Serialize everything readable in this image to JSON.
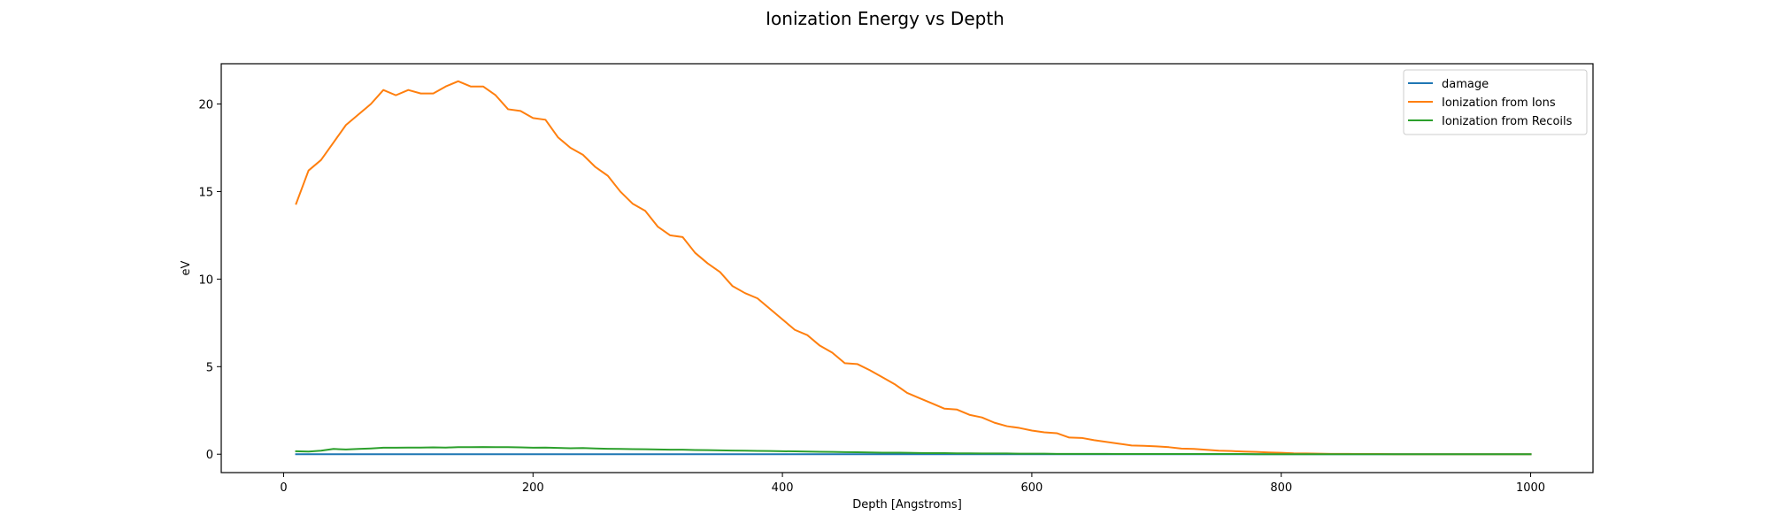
{
  "chart_data": {
    "type": "line",
    "title": "Ionization Energy vs Depth",
    "xlabel": "Depth [Angstroms]",
    "ylabel": "eV",
    "xlim": [
      -50,
      1050
    ],
    "ylim": [
      -1.05,
      22.3
    ],
    "xticks": [
      0,
      200,
      400,
      600,
      800,
      1000
    ],
    "yticks": [
      0,
      5,
      10,
      15,
      20
    ],
    "grid": false,
    "legend_position": "top-right",
    "x": [
      10,
      20,
      30,
      40,
      50,
      60,
      70,
      80,
      90,
      100,
      110,
      120,
      130,
      140,
      150,
      160,
      170,
      180,
      190,
      200,
      210,
      220,
      230,
      240,
      250,
      260,
      270,
      280,
      290,
      300,
      310,
      320,
      330,
      340,
      350,
      360,
      370,
      380,
      390,
      400,
      410,
      420,
      430,
      440,
      450,
      460,
      470,
      480,
      490,
      500,
      510,
      520,
      530,
      540,
      550,
      560,
      570,
      580,
      590,
      600,
      610,
      620,
      630,
      640,
      650,
      660,
      670,
      680,
      690,
      700,
      710,
      720,
      730,
      740,
      750,
      760,
      770,
      780,
      790,
      800,
      810,
      820,
      830,
      840,
      850,
      860,
      870,
      880,
      890,
      900,
      910,
      920,
      930,
      940,
      950,
      960,
      970,
      980,
      990,
      1000
    ],
    "series": [
      {
        "name": "damage",
        "color": "#1f77b4",
        "values": [
          0.0,
          0.0,
          0.0,
          0.0,
          0.0,
          0.0,
          0.0,
          0.0,
          0.0,
          0.0,
          0.0,
          0.0,
          0.0,
          0.0,
          0.0,
          0.0,
          0.0,
          0.0,
          0.0,
          0.0,
          0.0,
          0.0,
          0.0,
          0.0,
          0.0,
          0.0,
          0.0,
          0.0,
          0.0,
          0.0,
          0.0,
          0.0,
          0.0,
          0.0,
          0.0,
          0.0,
          0.0,
          0.0,
          0.0,
          0.0,
          0.0,
          0.0,
          0.0,
          0.0,
          0.0,
          0.0,
          0.0,
          0.0,
          0.0,
          0.0,
          0.0,
          0.0,
          0.0,
          0.0,
          0.0,
          0.0,
          0.0,
          0.0,
          0.0,
          0.0,
          0.0,
          0.0,
          0.0,
          0.0,
          0.0,
          0.0,
          0.0,
          0.0,
          0.0,
          0.0,
          0.0,
          0.0,
          0.0,
          0.0,
          0.0,
          0.0,
          0.0,
          0.0,
          0.0,
          0.0,
          0.0,
          0.0,
          0.0,
          0.0,
          0.0,
          0.0,
          0.0,
          0.0,
          0.0,
          0.0,
          0.0,
          0.0,
          0.0,
          0.0,
          0.0,
          0.0,
          0.0,
          0.0,
          0.0,
          0.0
        ]
      },
      {
        "name": "Ionization from Ions",
        "color": "#ff7f0e",
        "values": [
          14.3,
          16.2,
          16.8,
          17.8,
          18.8,
          19.4,
          20.0,
          20.8,
          20.5,
          20.8,
          20.6,
          20.6,
          21.0,
          21.3,
          21.0,
          21.0,
          20.5,
          19.7,
          19.6,
          19.2,
          19.1,
          18.1,
          17.5,
          17.1,
          16.4,
          15.9,
          15.0,
          14.3,
          13.9,
          13.0,
          12.5,
          12.4,
          11.5,
          10.9,
          10.4,
          9.6,
          9.2,
          8.9,
          8.3,
          7.7,
          7.1,
          6.8,
          6.2,
          5.8,
          5.2,
          5.15,
          4.8,
          4.4,
          4.0,
          3.5,
          3.2,
          2.9,
          2.6,
          2.55,
          2.25,
          2.1,
          1.8,
          1.6,
          1.5,
          1.35,
          1.25,
          1.2,
          0.95,
          0.93,
          0.8,
          0.7,
          0.6,
          0.5,
          0.48,
          0.45,
          0.4,
          0.32,
          0.3,
          0.25,
          0.2,
          0.18,
          0.15,
          0.13,
          0.1,
          0.08,
          0.05,
          0.04,
          0.03,
          0.02,
          0.02,
          0.01,
          0.01,
          0.01,
          0.0,
          0.0,
          0.0,
          0.0,
          0.0,
          0.0,
          0.0,
          0.0,
          0.0,
          0.0,
          0.0,
          0.0
        ]
      },
      {
        "name": "Ionization from Recoils",
        "color": "#2ca02c",
        "values": [
          0.17,
          0.15,
          0.2,
          0.3,
          0.27,
          0.3,
          0.33,
          0.37,
          0.37,
          0.38,
          0.38,
          0.39,
          0.38,
          0.4,
          0.4,
          0.41,
          0.4,
          0.4,
          0.39,
          0.37,
          0.38,
          0.36,
          0.34,
          0.35,
          0.33,
          0.31,
          0.3,
          0.29,
          0.28,
          0.27,
          0.26,
          0.26,
          0.24,
          0.23,
          0.22,
          0.21,
          0.2,
          0.19,
          0.18,
          0.17,
          0.16,
          0.15,
          0.14,
          0.13,
          0.12,
          0.11,
          0.1,
          0.09,
          0.09,
          0.08,
          0.07,
          0.06,
          0.06,
          0.05,
          0.05,
          0.04,
          0.04,
          0.04,
          0.03,
          0.03,
          0.03,
          0.02,
          0.02,
          0.02,
          0.02,
          0.02,
          0.01,
          0.01,
          0.01,
          0.01,
          0.01,
          0.01,
          0.01,
          0.01,
          0.01,
          0.01,
          0.01,
          0.0,
          0.0,
          0.0,
          0.0,
          0.0,
          0.0,
          0.0,
          0.0,
          0.0,
          0.0,
          0.0,
          0.0,
          0.0,
          0.0,
          0.0,
          0.0,
          0.0,
          0.0,
          0.0,
          0.0,
          0.0,
          0.0,
          0.0
        ]
      }
    ]
  }
}
